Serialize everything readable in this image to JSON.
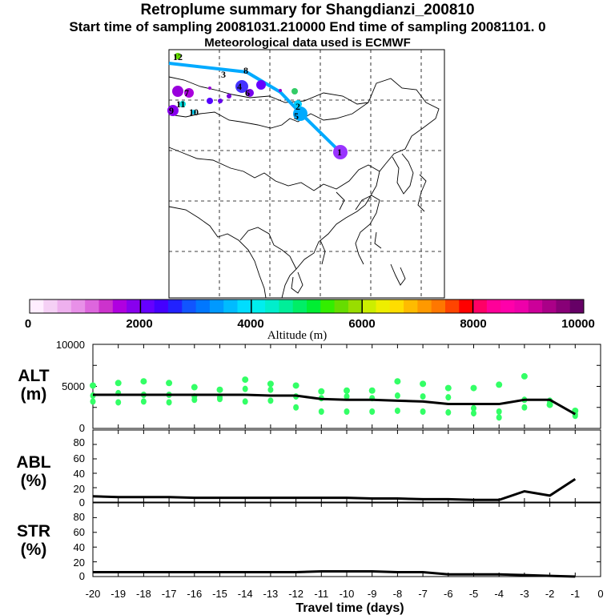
{
  "header": {
    "title": "Retroplume summary for Shangdianzi_200810",
    "subtitle": "Start time of sampling 20081031.210000     End time of sampling 20081101.     0",
    "met": "Meteorological data used is ECMWF"
  },
  "colorbar": {
    "ticks": [
      "0",
      "2000",
      "4000",
      "6000",
      "8000",
      "10000"
    ],
    "label": "Altitude (m)",
    "colors": [
      "#ffeeff",
      "#f5d0f5",
      "#eeb0ee",
      "#e890e8",
      "#dd66dd",
      "#cc33cc",
      "#b000e0",
      "#8800ee",
      "#6600ff",
      "#4400ff",
      "#2222ff",
      "#1155ff",
      "#0077ff",
      "#0099ff",
      "#00bbff",
      "#00ddff",
      "#00eeee",
      "#00eecc",
      "#00ee99",
      "#00ee66",
      "#00ee33",
      "#33ee00",
      "#66dd00",
      "#99dd00",
      "#ccee00",
      "#eeee00",
      "#ffdd00",
      "#ffbb00",
      "#ff9900",
      "#ff7700",
      "#ff4400",
      "#ff0000",
      "#ff0066",
      "#ff0099",
      "#ff00aa",
      "#ee00aa",
      "#cc0099",
      "#aa0088",
      "#880077",
      "#660066"
    ]
  },
  "map": {
    "track_labels": [
      "1",
      "2",
      "3",
      "4",
      "5",
      "6",
      "7",
      "8",
      "9",
      "10",
      "11",
      "12"
    ]
  },
  "panels": {
    "alt": {
      "label_line1": "ALT",
      "label_line2": "(m)",
      "ticks": [
        "10000",
        "5000",
        "0"
      ]
    },
    "abl": {
      "label_line1": "ABL",
      "label_line2": "(%)",
      "ticks": [
        "80",
        "60",
        "40",
        "20",
        "0"
      ]
    },
    "str": {
      "label_line1": "STR",
      "label_line2": "(%)",
      "ticks": [
        "80",
        "60",
        "40",
        "20",
        "0"
      ]
    }
  },
  "chart_data": [
    {
      "type": "line",
      "title": "ALT (m)",
      "xlabel": "Travel time (days)",
      "ylabel": "ALT (m)",
      "xlim": [
        -20,
        0
      ],
      "ylim": [
        0,
        10000
      ],
      "x_ticks": [
        "-20",
        "-19",
        "-18",
        "-17",
        "-16",
        "-15",
        "-14",
        "-13",
        "-12",
        "-11",
        "-10",
        "-9",
        "-8",
        "-7",
        "-6",
        "-5",
        "-4",
        "-3",
        "-2",
        "-1",
        "0"
      ],
      "x": [
        -20,
        -19,
        -18,
        -17,
        -16,
        -15,
        -14,
        -13,
        -12,
        -11,
        -10,
        -9,
        -8,
        -7,
        -6,
        -5,
        -4,
        -3,
        -2,
        -1
      ],
      "mean_altitude": [
        4000,
        4000,
        4000,
        4000,
        4000,
        4000,
        4000,
        3900,
        3900,
        3500,
        3400,
        3400,
        3300,
        3200,
        2900,
        2900,
        2900,
        3400,
        3400,
        1700
      ],
      "cluster_altitudes": [
        [
          5100,
          3900,
          3200
        ],
        [
          5400,
          4200,
          3100
        ],
        [
          5600,
          4000,
          3200
        ],
        [
          5400,
          4000,
          3100
        ],
        [
          4900,
          3800,
          3400
        ],
        [
          4600,
          3700,
          3500
        ],
        [
          5800,
          4700,
          3200
        ],
        [
          5300,
          4600,
          3300
        ],
        [
          5100,
          3800,
          2500
        ],
        [
          4400,
          2000,
          3600
        ],
        [
          4500,
          3800,
          2000
        ],
        [
          4500,
          3600,
          2000
        ],
        [
          5600,
          3900,
          2100
        ],
        [
          5300,
          3800,
          2000
        ],
        [
          4800,
          3700,
          1900
        ],
        [
          4800,
          2400,
          1800
        ],
        [
          5200,
          2000,
          1300
        ],
        [
          6200,
          2500,
          3400
        ],
        [
          2800,
          3300,
          3000
        ],
        [
          2100,
          1700,
          1500
        ]
      ],
      "cluster_color": "#33ff66"
    },
    {
      "type": "line",
      "title": "ABL (%)",
      "ylabel": "ABL (%)",
      "xlim": [
        -20,
        0
      ],
      "ylim": [
        0,
        100
      ],
      "x": [
        -20,
        -19,
        -18,
        -17,
        -16,
        -15,
        -14,
        -13,
        -12,
        -11,
        -10,
        -9,
        -8,
        -7,
        -6,
        -5,
        -4,
        -3,
        -2,
        -1
      ],
      "values": [
        8,
        7,
        7,
        7,
        6,
        6,
        6,
        6,
        6,
        6,
        6,
        5,
        5,
        4,
        4,
        3,
        3,
        15,
        9,
        32
      ]
    },
    {
      "type": "line",
      "title": "STR (%)",
      "ylabel": "STR (%)",
      "xlim": [
        -20,
        0
      ],
      "ylim": [
        0,
        100
      ],
      "x": [
        -20,
        -19,
        -18,
        -17,
        -16,
        -15,
        -14,
        -13,
        -12,
        -11,
        -10,
        -9,
        -8,
        -7,
        -6,
        -5,
        -4,
        -3,
        -2,
        -1
      ],
      "values": [
        6,
        6,
        6,
        6,
        6,
        6,
        6,
        6,
        6,
        7,
        7,
        7,
        6,
        6,
        3,
        3,
        3,
        2,
        1,
        0
      ]
    }
  ]
}
